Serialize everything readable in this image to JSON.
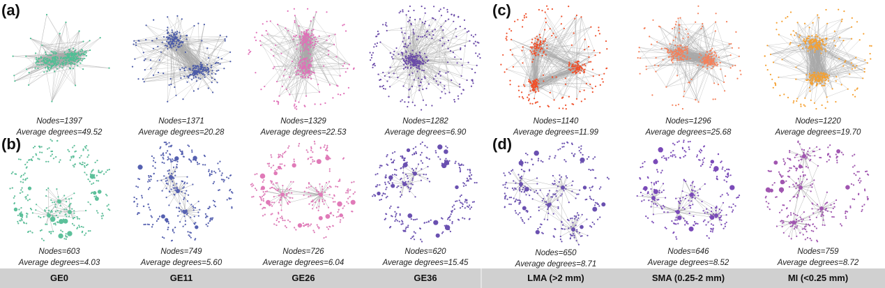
{
  "figure": {
    "panel_labels": [
      "(a)",
      "(b)",
      "(c)",
      "(d)"
    ],
    "columns": [
      {
        "label": "GE0",
        "node_color": "#4fbf94"
      },
      {
        "label": "GE11",
        "node_color": "#4a5aa8"
      },
      {
        "label": "GE26",
        "node_color": "#e070b8"
      },
      {
        "label": "GE36",
        "node_color": "#6a4aa8"
      },
      {
        "label": "LMA (>2 mm)",
        "node_color": "#f0502a"
      },
      {
        "label": "SMA (0.25-2 mm)",
        "node_color": "#f5805a"
      },
      {
        "label": "MI (<0.25 mm)",
        "node_color": "#f5a030"
      }
    ],
    "top_row": [
      {
        "nodes": "Nodes=1397",
        "degrees": "Average degrees=49.52",
        "color": "#4fbf94"
      },
      {
        "nodes": "Nodes=1371",
        "degrees": "Average degrees=20.28",
        "color": "#4a5aa8"
      },
      {
        "nodes": "Nodes=1329",
        "degrees": "Average degrees=22.53",
        "color": "#e070b8"
      },
      {
        "nodes": "Nodes=1282",
        "degrees": "Average degrees=6.90",
        "color": "#6a4aa8"
      },
      {
        "nodes": "Nodes=1140",
        "degrees": "Average degrees=11.99",
        "color": "#f0502a"
      },
      {
        "nodes": "Nodes=1296",
        "degrees": "Average degrees=25.68",
        "color": "#f5805a"
      },
      {
        "nodes": "Nodes=1220",
        "degrees": "Average degrees=19.70",
        "color": "#f5a030"
      }
    ],
    "bottom_row": [
      {
        "nodes": "Nodes=603",
        "degrees": "Average degrees=4.03",
        "color": "#5cc09a"
      },
      {
        "nodes": "Nodes=749",
        "degrees": "Average degrees=5.60",
        "color": "#5560b0"
      },
      {
        "nodes": "Nodes=726",
        "degrees": "Average degrees=6.04",
        "color": "#e07ab8"
      },
      {
        "nodes": "Nodes=620",
        "degrees": "Average degrees=15.45",
        "color": "#6a50b0"
      },
      {
        "nodes": "Nodes=650",
        "degrees": "Average degrees=8.71",
        "color": "#6a50b0"
      },
      {
        "nodes": "Nodes=646",
        "degrees": "Average degrees=8.52",
        "color": "#7a4ab8"
      },
      {
        "nodes": "Nodes=759",
        "degrees": "Average degrees=8.72",
        "color": "#a055b0"
      }
    ],
    "edge_color": "#a8a8a8"
  }
}
